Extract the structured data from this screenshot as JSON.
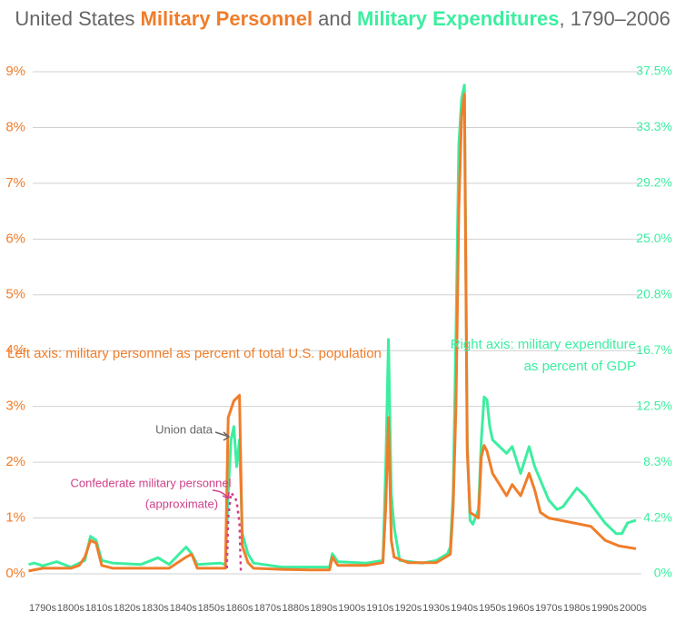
{
  "chart_data": {
    "type": "line",
    "title": [
      "United States ",
      "Military Personnel",
      " and ",
      "Military Expenditures",
      ", 1790–2006"
    ],
    "xlim": [
      1790,
      2006
    ],
    "xticks": [
      {
        "value": 1795,
        "label": "1790s"
      },
      {
        "value": 1805,
        "label": "1800s"
      },
      {
        "value": 1815,
        "label": "1810s"
      },
      {
        "value": 1825,
        "label": "1820s"
      },
      {
        "value": 1835,
        "label": "1830s"
      },
      {
        "value": 1845,
        "label": "1840s"
      },
      {
        "value": 1855,
        "label": "1850s"
      },
      {
        "value": 1865,
        "label": "1860s"
      },
      {
        "value": 1875,
        "label": "1870s"
      },
      {
        "value": 1885,
        "label": "1880s"
      },
      {
        "value": 1895,
        "label": "1890s"
      },
      {
        "value": 1905,
        "label": "1900s"
      },
      {
        "value": 1915,
        "label": "1910s"
      },
      {
        "value": 1925,
        "label": "1920s"
      },
      {
        "value": 1935,
        "label": "1930s"
      },
      {
        "value": 1945,
        "label": "1940s"
      },
      {
        "value": 1955,
        "label": "1950s"
      },
      {
        "value": 1965,
        "label": "1960s"
      },
      {
        "value": 1975,
        "label": "1970s"
      },
      {
        "value": 1985,
        "label": "1980s"
      },
      {
        "value": 1995,
        "label": "1990s"
      },
      {
        "value": 2005,
        "label": "2000s"
      }
    ],
    "ylim": [
      0,
      9
    ],
    "yticks": [
      {
        "value": 0,
        "label": "0%"
      },
      {
        "value": 1,
        "label": "1%"
      },
      {
        "value": 2,
        "label": "2%"
      },
      {
        "value": 3,
        "label": "3%"
      },
      {
        "value": 4,
        "label": "4%"
      },
      {
        "value": 5,
        "label": "5%"
      },
      {
        "value": 6,
        "label": "6%"
      },
      {
        "value": 7,
        "label": "7%"
      },
      {
        "value": 8,
        "label": "8%"
      },
      {
        "value": 9,
        "label": "9%"
      }
    ],
    "y2lim": [
      0,
      37.5
    ],
    "y2ticks": [
      {
        "value": 0,
        "label": "0%"
      },
      {
        "value": 4.1667,
        "label": "4.2%"
      },
      {
        "value": 8.3333,
        "label": "8.3%"
      },
      {
        "value": 12.5,
        "label": "12.5%"
      },
      {
        "value": 16.6667,
        "label": "16.7%"
      },
      {
        "value": 20.8333,
        "label": "20.8%"
      },
      {
        "value": 25,
        "label": "25.0%"
      },
      {
        "value": 29.1667,
        "label": "29.2%"
      },
      {
        "value": 33.3333,
        "label": "33.3%"
      },
      {
        "value": 37.5,
        "label": "37.5%"
      }
    ],
    "grid": true,
    "series": [
      {
        "color": "#3deea0",
        "axis": "y2",
        "x": [
          1790,
          1792,
          1795,
          1800,
          1805,
          1810,
          1812,
          1814,
          1816,
          1820,
          1830,
          1836,
          1840,
          1846,
          1848,
          1850,
          1858,
          1860,
          1861,
          1862,
          1863,
          1864,
          1865,
          1866,
          1868,
          1870,
          1880,
          1890,
          1897,
          1898,
          1900,
          1910,
          1916,
          1917,
          1918,
          1919,
          1920,
          1922,
          1930,
          1935,
          1939,
          1940,
          1941,
          1942,
          1943,
          1944,
          1945,
          1946,
          1947,
          1948,
          1950,
          1951,
          1952,
          1953,
          1954,
          1955,
          1960,
          1962,
          1965,
          1968,
          1970,
          1975,
          1978,
          1980,
          1985,
          1988,
          1990,
          1995,
          1999,
          2001,
          2003,
          2006
        ],
        "values": [
          0.7,
          0.8,
          0.6,
          0.9,
          0.5,
          1,
          2.8,
          2.5,
          1,
          0.8,
          0.7,
          1.2,
          0.7,
          2,
          1.5,
          0.7,
          0.8,
          0.7,
          6,
          10,
          11,
          8,
          10,
          3,
          1.5,
          0.8,
          0.5,
          0.5,
          0.5,
          1.5,
          0.9,
          0.8,
          1,
          8,
          17.5,
          6,
          3.5,
          1,
          0.8,
          1,
          1.5,
          2,
          6,
          18,
          32,
          35.5,
          36.5,
          10,
          4,
          3.7,
          4.8,
          10,
          13.2,
          13,
          11,
          10,
          9,
          9.5,
          7.5,
          9.5,
          8,
          5.5,
          4.8,
          5,
          6.4,
          5.8,
          5.2,
          3.8,
          3,
          3,
          3.8,
          4
        ]
      },
      {
        "color": "#f07d2a",
        "x": [
          1790,
          1795,
          1800,
          1805,
          1808,
          1810,
          1812,
          1814,
          1816,
          1820,
          1830,
          1840,
          1846,
          1848,
          1850,
          1858,
          1860,
          1861,
          1863,
          1865,
          1866,
          1868,
          1870,
          1880,
          1890,
          1897,
          1898,
          1900,
          1910,
          1916,
          1917,
          1918,
          1919,
          1920,
          1925,
          1935,
          1940,
          1941,
          1942,
          1943,
          1944,
          1945,
          1946,
          1947,
          1950,
          1951,
          1952,
          1953,
          1955,
          1960,
          1962,
          1965,
          1968,
          1970,
          1972,
          1975,
          1980,
          1990,
          1995,
          2000,
          2006
        ],
        "values": [
          0.05,
          0.1,
          0.1,
          0.1,
          0.15,
          0.3,
          0.6,
          0.55,
          0.15,
          0.1,
          0.1,
          0.1,
          0.3,
          0.35,
          0.1,
          0.1,
          0.1,
          2.8,
          3.1,
          3.2,
          0.5,
          0.2,
          0.1,
          0.08,
          0.07,
          0.07,
          0.3,
          0.15,
          0.15,
          0.2,
          1.2,
          2.8,
          0.6,
          0.3,
          0.2,
          0.2,
          0.35,
          1.2,
          3,
          6.5,
          8.2,
          8.6,
          2.2,
          1.1,
          1,
          2.1,
          2.3,
          2.2,
          1.8,
          1.4,
          1.6,
          1.4,
          1.8,
          1.5,
          1.1,
          1,
          0.95,
          0.85,
          0.6,
          0.5,
          0.45
        ]
      },
      {
        "color": "#d0408a",
        "dashed": true,
        "x": [
          1860.5,
          1861,
          1862,
          1863,
          1864,
          1865,
          1865.5
        ],
        "values": [
          0.1,
          1,
          1.45,
          1.4,
          1.3,
          0.9,
          0
        ]
      }
    ],
    "annotations": {
      "left_axis": "Left axis: military personnel as percent of total U.S. population",
      "right_axis": [
        "Right axis: military expenditure",
        "as percent of GDP"
      ],
      "union": "Union data",
      "confederate": [
        "Confederate military personnel",
        "(approximate)"
      ]
    }
  }
}
